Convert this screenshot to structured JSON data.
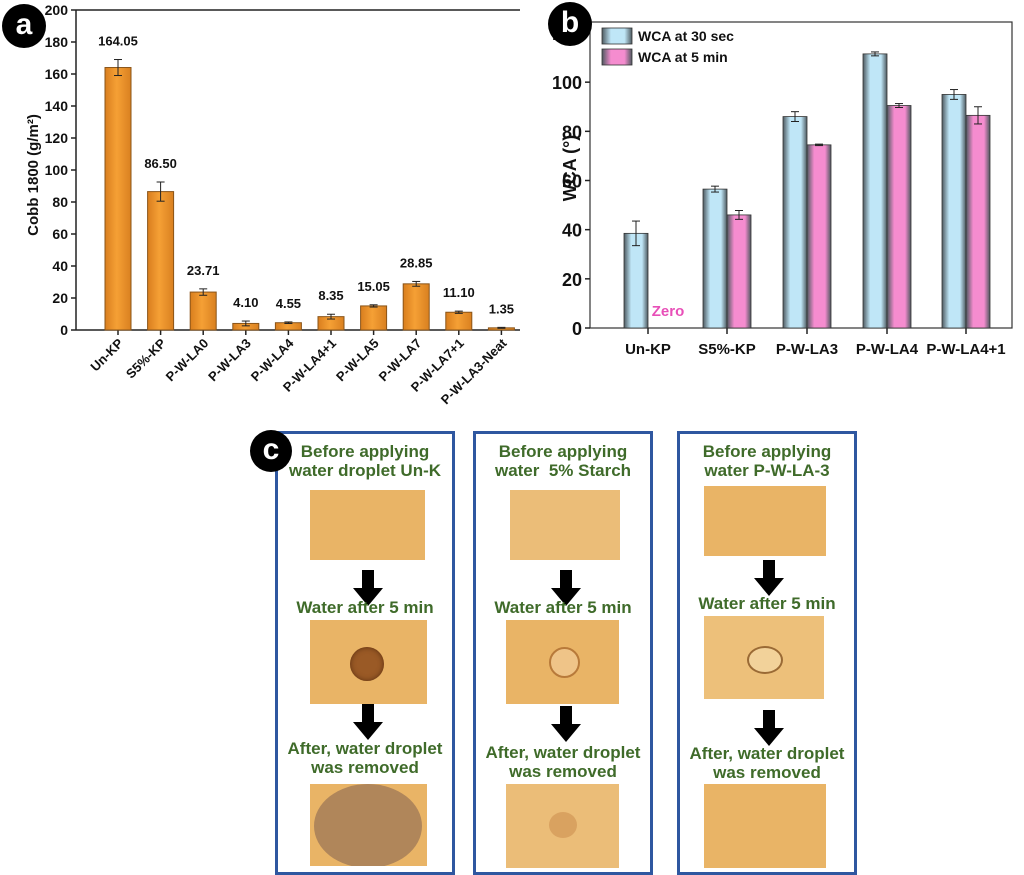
{
  "panels": {
    "a_label": "a",
    "b_label": "b",
    "c_label": "c"
  },
  "chart_data": [
    {
      "id": "a",
      "type": "bar",
      "title": "",
      "xlabel": "",
      "ylabel": "Cobb 1800 (g/m²)",
      "ylim": [
        0,
        200
      ],
      "yticks": [
        0,
        20,
        40,
        60,
        80,
        100,
        120,
        140,
        160,
        180,
        200
      ],
      "categories": [
        "Un-KP",
        "S5%-KP",
        "P-W-LA0",
        "P-W-LA3",
        "P-W-LA4",
        "P-W-LA4+1",
        "P-W-LA5",
        "P-W-LA7",
        "P-W-LA7+1",
        "P-W-LA3-Neat"
      ],
      "values": [
        164.05,
        86.5,
        23.71,
        4.1,
        4.55,
        8.35,
        15.05,
        28.85,
        11.1,
        1.35
      ],
      "value_labels": [
        "164.05",
        "86.50",
        "23.71",
        "4.10",
        "4.55",
        "8.35",
        "15.05",
        "28.85",
        "11.10",
        "1.35"
      ],
      "errors": [
        5,
        6,
        2,
        1.5,
        0.5,
        1.5,
        0.7,
        1.5,
        0.7,
        0.3
      ],
      "color": "#f5a035",
      "grid": false
    },
    {
      "id": "b",
      "type": "bar",
      "title": "",
      "xlabel": "",
      "ylabel": "WCA (°)",
      "ylim": [
        0,
        120
      ],
      "yticks": [
        0,
        20,
        40,
        60,
        80,
        100,
        120
      ],
      "categories": [
        "Un-KP",
        "S5%-KP",
        "P-W-LA3",
        "P-W-LA4",
        "P-W-LA4+1"
      ],
      "series": [
        {
          "name": "WCA at 30 sec",
          "color": "#bfe6f7",
          "values": [
            38.5,
            56.5,
            86,
            111.5,
            95
          ],
          "errors": [
            5,
            1.2,
            2,
            0.8,
            2
          ]
        },
        {
          "name": "WCA at 5 min",
          "color": "#f58ccf",
          "values": [
            0,
            46,
            74.5,
            90.5,
            86.5
          ],
          "errors": [
            0,
            1.8,
            0.3,
            0.8,
            3.5
          ]
        }
      ],
      "annotations": [
        {
          "text": "Zero",
          "category": "Un-KP",
          "color": "#e84fb8"
        }
      ],
      "legend": "top-left",
      "grid": false
    }
  ],
  "panel_c": {
    "columns": [
      {
        "before": "Before applying\nwater droplet Un-K",
        "during": "Water after 5 min",
        "after": "After, water droplet\nwas removed",
        "photos": [
          "plain kraft paper",
          "dark absorbed droplet",
          "large dark wet stain"
        ]
      },
      {
        "before": "Before applying\nwater  5% Starch",
        "during": "Water after 5 min",
        "after": "After, water droplet\nwas removed",
        "photos": [
          "plain kraft paper",
          "light droplet ring",
          "faint small stain"
        ]
      },
      {
        "before": "Before applying\nwater P-W-LA-3",
        "during": "Water after 5 min",
        "after": "After, water droplet\nwas removed",
        "photos": [
          "plain kraft paper",
          "beaded droplet",
          "no stain"
        ]
      }
    ]
  }
}
